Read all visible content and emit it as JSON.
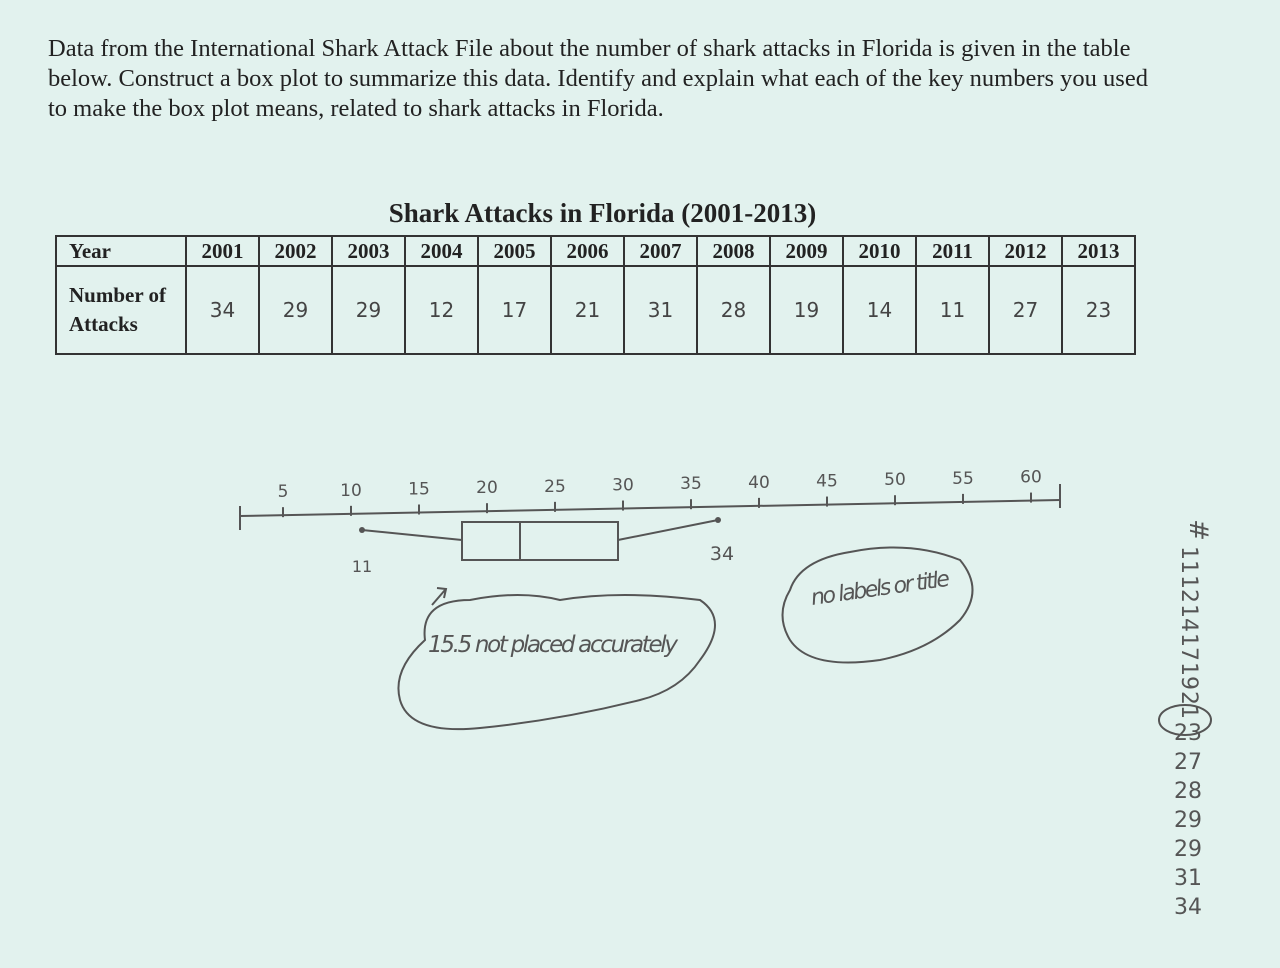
{
  "question": "Data from the International Shark Attack File about the number of shark attacks in Florida is given in the table below.  Construct a box plot to summarize this data.  Identify and explain what each of the key numbers you used to make the box plot means, related to shark attacks in Florida.",
  "table": {
    "title": "Shark Attacks in Florida (2001-2013)",
    "header": [
      "Year",
      "2001",
      "2002",
      "2003",
      "2004",
      "2005",
      "2006",
      "2007",
      "2008",
      "2009",
      "2010",
      "2011",
      "2012",
      "2013"
    ],
    "rows": [
      [
        "Number of Attacks",
        "34",
        "29",
        "29",
        "12",
        "17",
        "21",
        "31",
        "28",
        "19",
        "14",
        "11",
        "27",
        "23"
      ]
    ]
  },
  "handwriting": {
    "axis_labels": [
      "5",
      "10",
      "15",
      "20",
      "25",
      "30",
      "35",
      "40",
      "45",
      "50",
      "55",
      "60"
    ],
    "min_label": "11",
    "max_label": "34",
    "note_1": "15.5 not placed accurately",
    "note_2": "no labels or title",
    "sorted_header": "#",
    "sorted_list": [
      "11",
      "12",
      "14",
      "17",
      "19",
      "21",
      "23",
      "27",
      "28",
      "29",
      "29",
      "31",
      "34"
    ]
  }
}
